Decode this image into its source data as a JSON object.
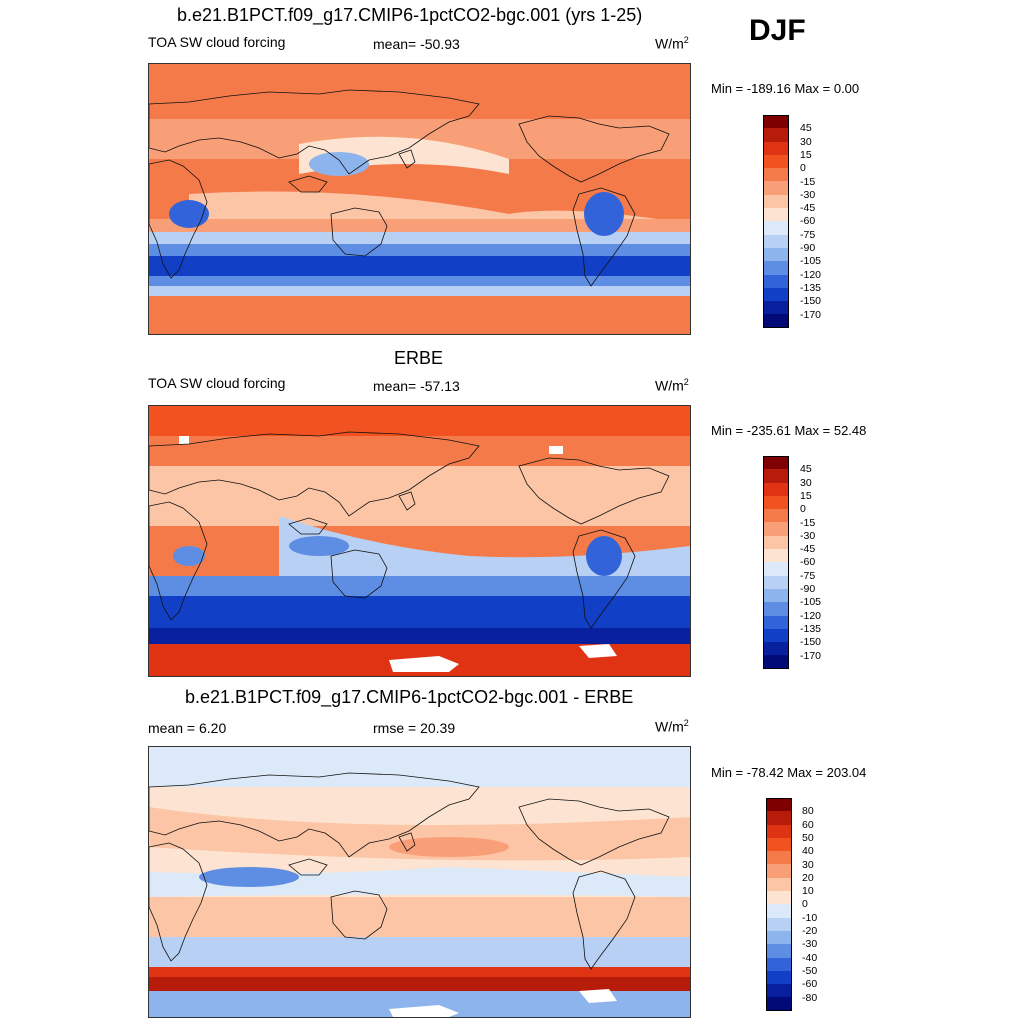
{
  "season": "DJF",
  "panels": [
    {
      "title": "b.e21.B1PCT.f09_g17.CMIP6-1pctCO2-bgc.001 (yrs 1-25)",
      "left_label": "TOA SW cloud forcing",
      "center_label": "mean= -50.93",
      "units": "W/m",
      "units_sup": "2",
      "minmax": "Min = -189.16 Max =   0.00",
      "colorbar_labels": [
        "45",
        "30",
        "15",
        "0",
        "-15",
        "-30",
        "-45",
        "-60",
        "-75",
        "-90",
        "-105",
        "-120",
        "-135",
        "-150",
        "-170"
      ],
      "colorbar_colors": [
        "#7f0000",
        "#b71c0a",
        "#e03313",
        "#f1521f",
        "#f57a4a",
        "#f99f77",
        "#fcc5a6",
        "#fde4d2",
        "#dce9f8",
        "#b7d0f3",
        "#8db4ec",
        "#5e8ee3",
        "#3363d8",
        "#1140c6",
        "#08209e",
        "#020a78"
      ],
      "map_style": "model"
    },
    {
      "title": "ERBE",
      "left_label": "TOA SW cloud forcing",
      "center_label": "mean= -57.13",
      "units": "W/m",
      "units_sup": "2",
      "minmax": "Min = -235.61 Max =  52.48",
      "colorbar_labels": [
        "45",
        "30",
        "15",
        "0",
        "-15",
        "-30",
        "-45",
        "-60",
        "-75",
        "-90",
        "-105",
        "-120",
        "-135",
        "-150",
        "-170"
      ],
      "colorbar_colors": [
        "#7f0000",
        "#b71c0a",
        "#e03313",
        "#f1521f",
        "#f57a4a",
        "#f99f77",
        "#fcc5a6",
        "#fde4d2",
        "#dce9f8",
        "#b7d0f3",
        "#8db4ec",
        "#5e8ee3",
        "#3363d8",
        "#1140c6",
        "#08209e",
        "#020a78"
      ],
      "map_style": "obs"
    },
    {
      "title": "b.e21.B1PCT.f09_g17.CMIP6-1pctCO2-bgc.001 - ERBE",
      "left_label": "mean =   6.20",
      "center_label": "rmse =  20.39",
      "units": "W/m",
      "units_sup": "2",
      "minmax": "Min = -78.42 Max = 203.04",
      "colorbar_labels": [
        "80",
        "60",
        "50",
        "40",
        "30",
        "20",
        "10",
        "0",
        "-10",
        "-20",
        "-30",
        "-40",
        "-50",
        "-60",
        "-80"
      ],
      "colorbar_colors": [
        "#7f0000",
        "#b71c0a",
        "#e03313",
        "#f1521f",
        "#f57a4a",
        "#f99f77",
        "#fcc5a6",
        "#fde4d2",
        "#dce9f8",
        "#b7d0f3",
        "#8db4ec",
        "#5e8ee3",
        "#3363d8",
        "#1140c6",
        "#08209e",
        "#020a78"
      ],
      "map_style": "diff"
    }
  ]
}
